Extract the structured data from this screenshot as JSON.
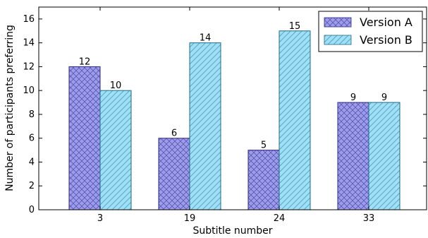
{
  "chart_data": {
    "type": "bar",
    "categories": [
      "3",
      "19",
      "24",
      "33"
    ],
    "series": [
      {
        "name": "Version A",
        "values": [
          12,
          6,
          5,
          9
        ],
        "color": "#9d9bed",
        "hatch": "cross"
      },
      {
        "name": "Version B",
        "values": [
          10,
          14,
          15,
          9
        ],
        "color": "#9ee0f5",
        "hatch": "diagonal"
      }
    ],
    "data_labels": [
      [
        "12",
        "6",
        "5",
        "9"
      ],
      [
        "10",
        "14",
        "15",
        "9"
      ]
    ],
    "xlabel": "Subtitle number",
    "ylabel": "Number of participants preferring",
    "ylim": [
      0,
      17
    ],
    "yticks": [
      "0",
      "2",
      "4",
      "6",
      "8",
      "10",
      "12",
      "14",
      "16"
    ],
    "legend_placement": "top-right",
    "grid": false
  }
}
